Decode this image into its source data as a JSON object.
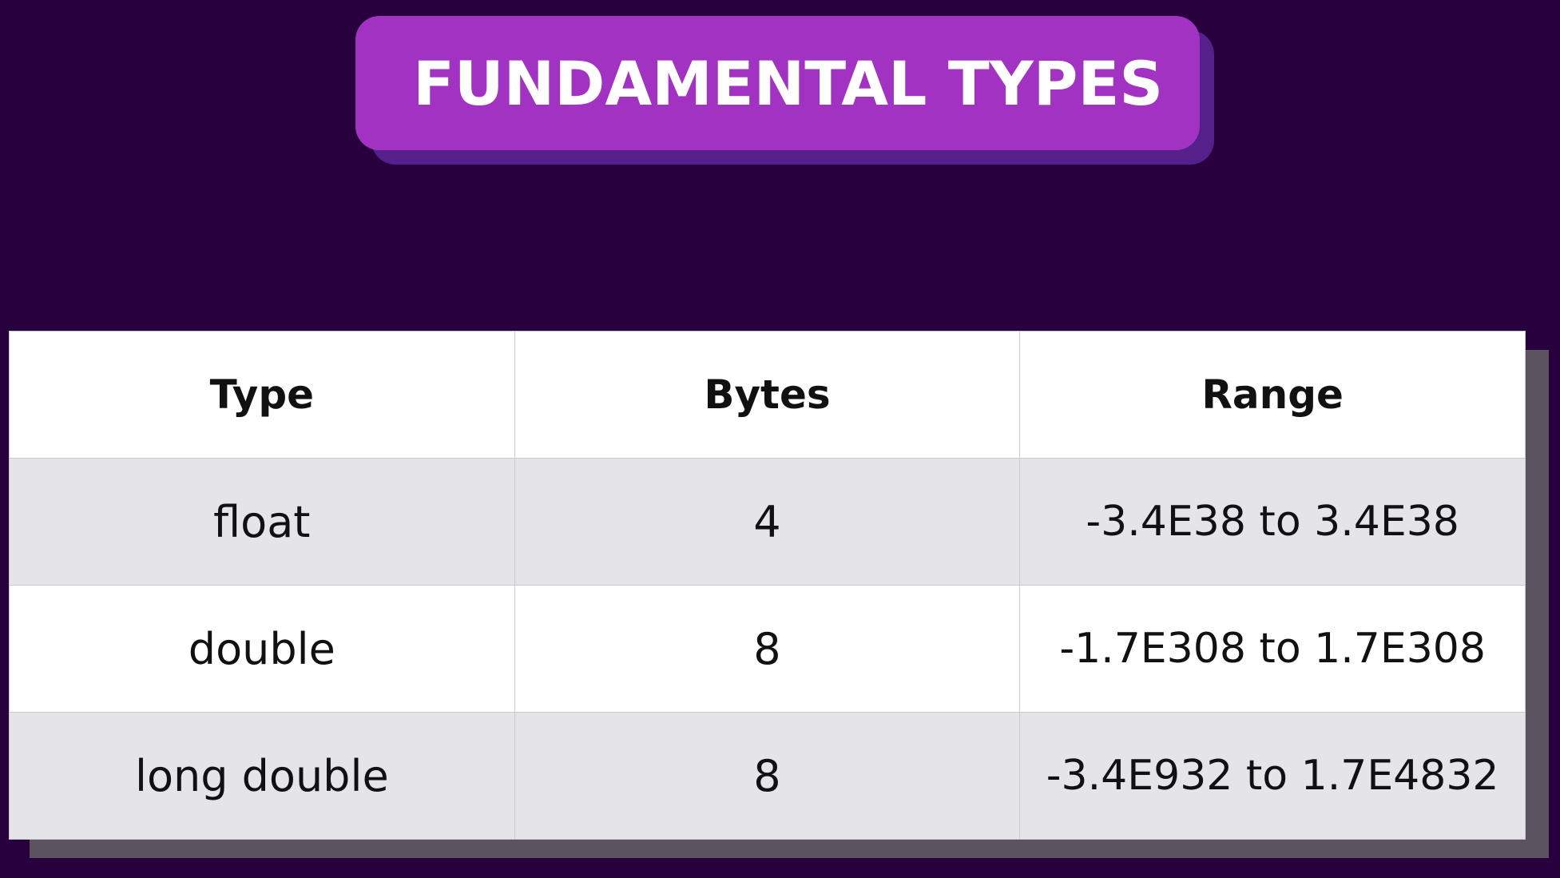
{
  "title": "FUNDAMENTAL TYPES",
  "table": {
    "headers": [
      "Type",
      "Bytes",
      "Range"
    ],
    "rows": [
      {
        "type": "float",
        "bytes": "4",
        "range": "-3.4E38 to 3.4E38"
      },
      {
        "type": "double",
        "bytes": "8",
        "range": "-1.7E308 to 1.7E308"
      },
      {
        "type": "long double",
        "bytes": "8",
        "range": "-3.4E932 to 1.7E4832"
      }
    ]
  },
  "colors": {
    "background": "#28003e",
    "title_fill": "#a132c2",
    "title_shadow": "#55208a",
    "row_shade": "#e4e4e9"
  }
}
